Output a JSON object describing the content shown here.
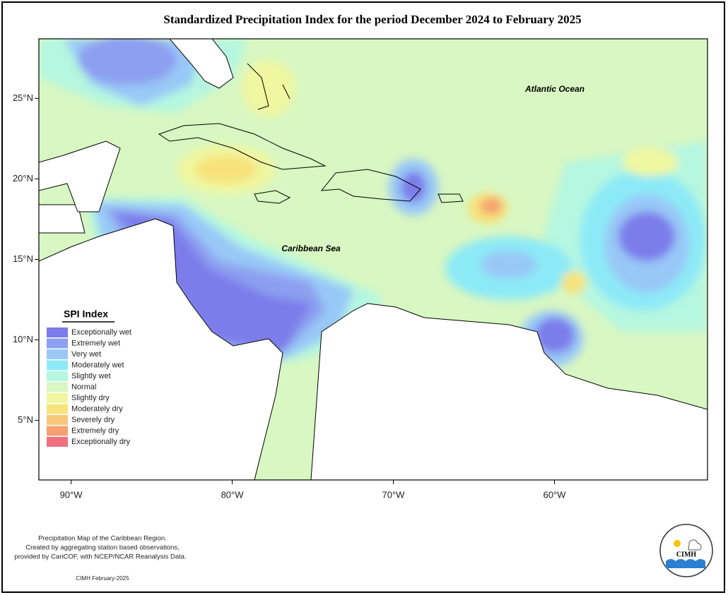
{
  "title": "Standardized Precipitation Index for the period December 2024 to February 2025",
  "map": {
    "xlim": [
      -92,
      -50.5
    ],
    "ylim": [
      1.3,
      28.7
    ],
    "xticks": [
      {
        "value": -90,
        "label": "90°W"
      },
      {
        "value": -80,
        "label": "80°W"
      },
      {
        "value": -70,
        "label": "70°W"
      },
      {
        "value": -60,
        "label": "60°W"
      }
    ],
    "yticks": [
      {
        "value": 25,
        "label": "25°N"
      },
      {
        "value": 20,
        "label": "20°N"
      },
      {
        "value": 15,
        "label": "15°N"
      },
      {
        "value": 10,
        "label": "10°N"
      },
      {
        "value": 5,
        "label": "5°N"
      }
    ],
    "labels": [
      "Atlantic Ocean",
      "Caribbean Sea"
    ]
  },
  "legend": {
    "title": "SPI Index",
    "items": [
      {
        "name": "Exceptionally wet",
        "color": "#7b7bea"
      },
      {
        "name": "Extremely wet",
        "color": "#8c9ff0"
      },
      {
        "name": "Very wet",
        "color": "#99c8f7"
      },
      {
        "name": "Moderately wet",
        "color": "#8ceaf7"
      },
      {
        "name": "Slightly wet",
        "color": "#b5f7e0"
      },
      {
        "name": "Normal",
        "color": "#d8f7c2"
      },
      {
        "name": "Slightly dry",
        "color": "#f0f7a0"
      },
      {
        "name": "Moderately dry",
        "color": "#f7e37a"
      },
      {
        "name": "Severely dry",
        "color": "#f7c77a"
      },
      {
        "name": "Extremely dry",
        "color": "#f7a070"
      },
      {
        "name": "Exceptionally dry",
        "color": "#f07080"
      }
    ]
  },
  "footer": {
    "lines": [
      "Precipitation Map of the Caribbean Region.",
      "Created by aggregating station based observations,",
      "provided by CariCOF, with NCEP/NCAR Reanalysis Data."
    ],
    "date": "CIMH February-2025",
    "logo": "CIMH"
  }
}
